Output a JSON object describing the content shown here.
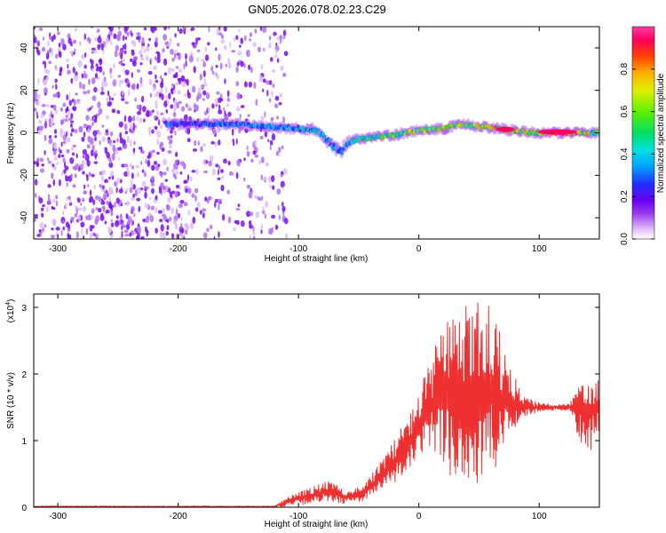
{
  "title": "GN05.2026.078.02.23.C29",
  "chart_data": [
    {
      "type": "heatmap",
      "name": "spectrogram",
      "xlabel": "Height of straight line (km)",
      "ylabel": "Frequency (Hz)",
      "xlim": [
        -320,
        150
      ],
      "ylim": [
        -50,
        50
      ],
      "xticks": [
        -300,
        -200,
        -100,
        0,
        100
      ],
      "yticks": [
        -40,
        -20,
        0,
        20,
        40
      ],
      "colorbar": {
        "label": "Normalized spectral amplitude",
        "range": [
          0.0,
          1.0
        ],
        "ticks": [
          0.0,
          0.2,
          0.4,
          0.6,
          0.8
        ],
        "colors": [
          "#ffffff",
          "#e4c8f8",
          "#9a3bf0",
          "#6a00ee",
          "#2030ff",
          "#00a0ff",
          "#00e0e0",
          "#00e060",
          "#60f000",
          "#e0f000",
          "#ffb000",
          "#ff4000",
          "#ff0060",
          "#ff40a0"
        ]
      },
      "ridge": {
        "x": [
          -205,
          -180,
          -150,
          -125,
          -100,
          -85,
          -78,
          -72,
          -65,
          -60,
          -50,
          -35,
          -20,
          0,
          20,
          35,
          50,
          65,
          80,
          100,
          120,
          150
        ],
        "frequency": [
          4,
          4,
          4,
          3,
          2,
          1,
          -2,
          -6,
          -9,
          -5,
          -3,
          -2,
          -1,
          1,
          2,
          4,
          3,
          2,
          1,
          0,
          0,
          0
        ],
        "amplitude": [
          0.3,
          0.32,
          0.34,
          0.38,
          0.42,
          0.45,
          0.4,
          0.38,
          0.35,
          0.4,
          0.45,
          0.5,
          0.55,
          0.6,
          0.62,
          0.6,
          0.6,
          0.8,
          0.7,
          0.6,
          0.9,
          0.5
        ]
      },
      "noise_region": {
        "x_from": -320,
        "x_to": -125,
        "typical_amplitude": 0.15
      }
    },
    {
      "type": "line",
      "name": "snr",
      "xlabel": "Height of straight line (km)",
      "ylabel": "SNR (10 * v/v)",
      "scale_label": "(x10",
      "scale_exp": "4",
      "xlim": [
        -320,
        150
      ],
      "ylim": [
        0,
        3.2
      ],
      "xticks": [
        -300,
        -200,
        -100,
        0,
        100
      ],
      "yticks": [
        0,
        1,
        2,
        3
      ],
      "color": "#ee3030",
      "envelope": {
        "x": [
          -320,
          -120,
          -105,
          -90,
          -75,
          -60,
          -45,
          -35,
          -25,
          -15,
          -5,
          5,
          15,
          25,
          35,
          45,
          55,
          65,
          75,
          85,
          95,
          105,
          115,
          125,
          135,
          145,
          150
        ],
        "low": [
          0,
          0,
          0.02,
          0.05,
          0.08,
          0.05,
          0.1,
          0.2,
          0.3,
          0.4,
          0.6,
          0.7,
          0.8,
          0.5,
          0.3,
          0.2,
          0.3,
          0.5,
          1.0,
          1.35,
          1.4,
          1.45,
          1.45,
          1.45,
          0.9,
          0.8,
          1.0
        ],
        "high": [
          0.02,
          0.02,
          0.2,
          0.3,
          0.4,
          0.25,
          0.35,
          0.6,
          0.9,
          1.2,
          1.5,
          2.0,
          2.5,
          2.9,
          3.0,
          3.1,
          3.15,
          2.8,
          2.2,
          1.7,
          1.6,
          1.55,
          1.55,
          1.55,
          2.0,
          2.1,
          2.0
        ]
      }
    }
  ]
}
